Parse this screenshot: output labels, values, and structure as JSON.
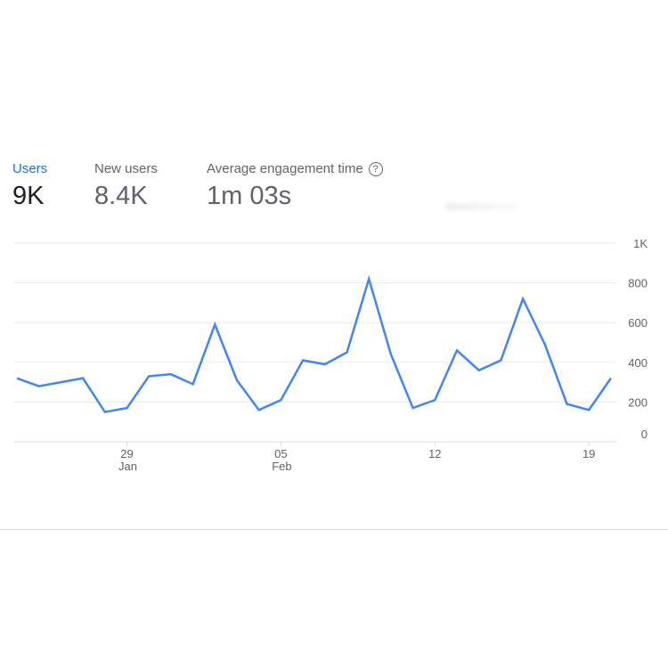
{
  "metrics": [
    {
      "label": "Users",
      "value": "9K",
      "active": true
    },
    {
      "label": "New users",
      "value": "8.4K",
      "active": false
    },
    {
      "label": "Average engagement time",
      "value": "1m 03s",
      "active": false,
      "help_icon": "question-circle-icon",
      "help_glyph": "?"
    }
  ],
  "colors": {
    "accent": "#1a73e8",
    "line": "#4285f4",
    "grid": "#e8eaed"
  },
  "chart_data": {
    "type": "line",
    "x": [
      "Jan 24",
      "Jan 25",
      "Jan 26",
      "Jan 27",
      "Jan 28",
      "Jan 29",
      "Jan 30",
      "Jan 31",
      "Feb 01",
      "Feb 02",
      "Feb 03",
      "Feb 04",
      "Feb 05",
      "Feb 06",
      "Feb 07",
      "Feb 08",
      "Feb 09",
      "Feb 10",
      "Feb 11",
      "Feb 12",
      "Feb 13",
      "Feb 14",
      "Feb 15",
      "Feb 16",
      "Feb 17",
      "Feb 18",
      "Feb 19",
      "Feb 20"
    ],
    "series": [
      {
        "values": [
          320,
          280,
          300,
          320,
          150,
          170,
          330,
          340,
          290,
          590,
          310,
          160,
          210,
          410,
          390,
          450,
          820,
          440,
          170,
          210,
          460,
          360,
          410,
          720,
          490,
          190,
          160,
          320
        ]
      }
    ],
    "ylim": [
      0,
      1000
    ],
    "yticks": [
      {
        "v": 0,
        "label": "0"
      },
      {
        "v": 200,
        "label": "200"
      },
      {
        "v": 400,
        "label": "400"
      },
      {
        "v": 600,
        "label": "600"
      },
      {
        "v": 800,
        "label": "800"
      },
      {
        "v": 1000,
        "label": "1K"
      }
    ],
    "xticks": [
      {
        "i": 5,
        "label": "29",
        "sub": "Jan"
      },
      {
        "i": 12,
        "label": "05",
        "sub": "Feb"
      },
      {
        "i": 19,
        "label": "12",
        "sub": ""
      },
      {
        "i": 26,
        "label": "19",
        "sub": ""
      }
    ],
    "grid": true,
    "y_axis_side": "right"
  }
}
